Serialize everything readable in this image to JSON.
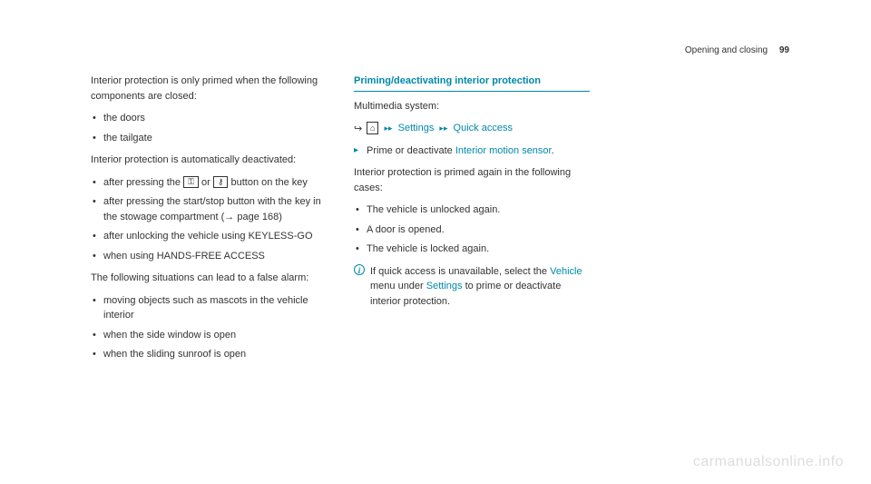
{
  "header": {
    "section": "Opening and closing",
    "page_number": "99"
  },
  "col1": {
    "intro": "Interior protection is only primed when the following components are closed:",
    "primed_list": [
      "the doors",
      "the tailgate"
    ],
    "deactivated_intro": "Interior protection is automatically deactivated:",
    "deactivated_list": {
      "item1_pre": "after pressing the ",
      "item1_mid": " or ",
      "item1_post": " button on the key",
      "item2": "after pressing the start/stop button with the key in the stowage compartment (→ page 168)",
      "item3": "after unlocking the vehicle using KEYLESS-GO",
      "item4": "when using HANDS-FREE ACCESS"
    },
    "false_alarm_intro": "The following situations can lead to a false alarm:",
    "false_alarm_list": [
      "moving objects such as mascots in the vehicle interior",
      "when the side window is open",
      "when the sliding sunroof is open"
    ]
  },
  "col2": {
    "heading": "Priming/deactivating interior protection",
    "multimedia_label": "Multimedia system:",
    "nav": {
      "settings": "Settings",
      "quick_access": "Quick access"
    },
    "action_pre": "Prime or deactivate ",
    "action_link": "Interior motion sensor",
    "action_post": ".",
    "reprimed_intro": "Interior protection is primed again in the following cases:",
    "reprimed_list": [
      "The vehicle is unlocked again.",
      "A door is opened.",
      "The vehicle is locked again."
    ],
    "info_pre": "If quick access is unavailable, select the ",
    "info_link1": "Vehicle",
    "info_mid": " menu under ",
    "info_link2": "Settings",
    "info_post": " to prime or deactivate interior protection."
  },
  "watermark": "carmanualsonline.info",
  "icons": {
    "home": "⌂",
    "lock": "🔒",
    "unlock": "🔓",
    "nav_arrow": "↪"
  }
}
